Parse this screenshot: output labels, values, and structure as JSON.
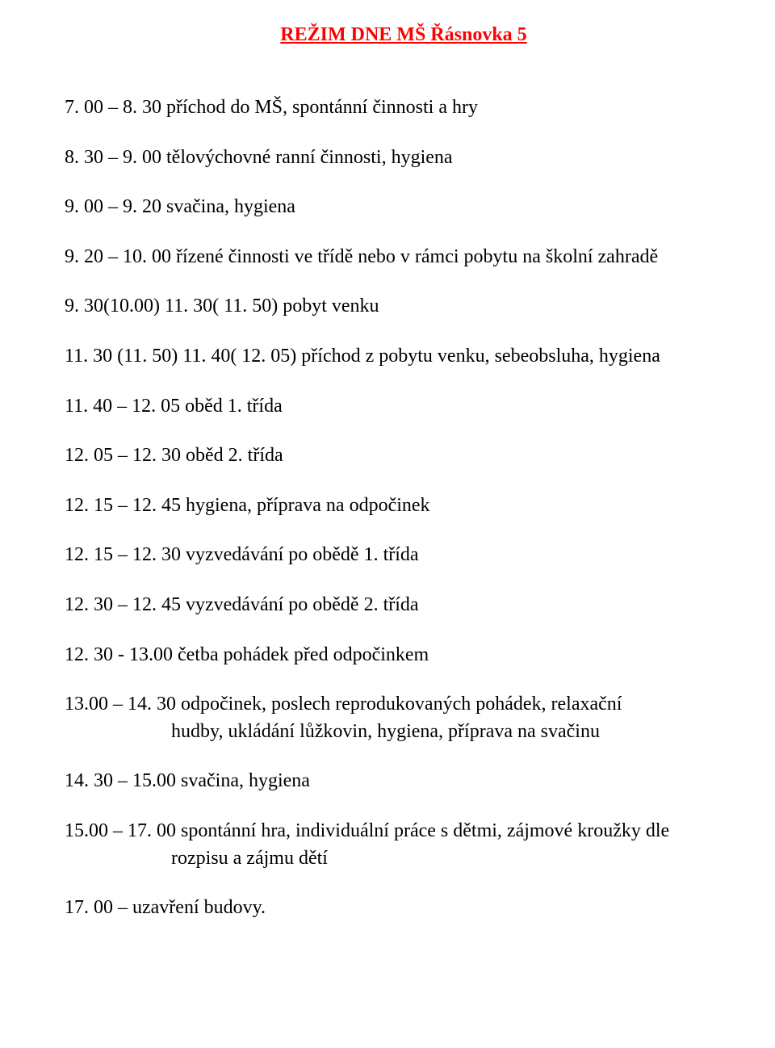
{
  "title": "REŽIM  DNE MŠ Řásnovka 5",
  "lines": {
    "l1": "7. 00 – 8. 30    příchod do MŠ, spontánní činnosti a hry",
    "l2": "8. 30 – 9. 00    tělovýchovné ranní činnosti, hygiena",
    "l3": "9. 00 – 9. 20    svačina, hygiena",
    "l4": "9. 20 – 10. 00 řízené činnosti ve třídě nebo v rámci pobytu na školní zahradě",
    "l5": "9. 30(10.00)   11. 30( 11. 50) pobyt venku",
    "l6": "11. 30 (11. 50) 11. 40( 12. 05) příchod z pobytu venku, sebeobsluha, hygiena",
    "l7": "11. 40 – 12. 05 oběd 1. třída",
    "l8": "12. 05 – 12. 30 oběd 2. třída",
    "l9": "12. 15 – 12. 45 hygiena, příprava na odpočinek",
    "l10": "12. 15 – 12. 30 vyzvedávání po obědě 1. třída",
    "l11": "12. 30 – 12. 45 vyzvedávání po obědě 2. třída",
    "l12": "12. 30  -  13.00 četba pohádek před odpočinkem",
    "l13": "13.00 – 14. 30    odpočinek, poslech reprodukovaných pohádek, relaxační",
    "l13b": "hudby, ukládání lůžkovin, hygiena, příprava na svačinu",
    "l14": "14. 30 – 15.00 svačina, hygiena",
    "l15": "15.00 – 17. 00 spontánní hra, individuální práce s dětmi, zájmové kroužky dle",
    "l15b": "rozpisu a zájmu dětí",
    "l16": "17. 00 – uzavření budovy."
  },
  "colors": {
    "title": "#ff0000",
    "text": "#000000",
    "background": "#ffffff"
  },
  "typography": {
    "font_family": "Times New Roman",
    "title_fontsize": 24,
    "body_fontsize": 24,
    "title_weight": "bold"
  }
}
